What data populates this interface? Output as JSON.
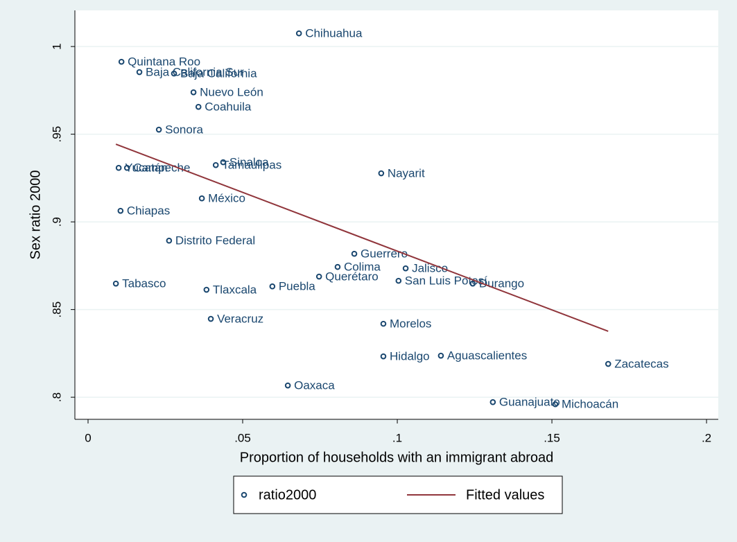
{
  "chart_data": {
    "type": "scatter",
    "x_label": "Proportion of households with an immigrant abroad",
    "y_label": "Sex ratio 2000",
    "xlim": [
      -0.00426,
      0.2038
    ],
    "ylim": [
      0.7874,
      1.0206
    ],
    "xticks": [
      0,
      {
        "value": 0.05,
        "label": ".05"
      },
      {
        "value": 0.1,
        "label": ".1"
      },
      {
        "value": 0.15,
        "label": ".15"
      },
      {
        "value": 0.2,
        "label": ".2"
      }
    ],
    "yticks": [
      {
        "value": 0.8,
        "label": ".8"
      },
      {
        "value": 0.85,
        "label": ".85"
      },
      {
        "value": 0.9,
        "label": ".9"
      },
      {
        "value": 0.95,
        "label": ".95"
      },
      1
    ],
    "grid": true,
    "series": [
      {
        "name": "ratio2000",
        "color": "#1a476f",
        "type": "scatter",
        "labels": [
          "Chihuahua",
          "Quintana Roo",
          "Baja California Sur",
          "Baja California",
          "Nuevo León",
          "Coahuila",
          "Sonora",
          "Yucatán",
          "Campeche",
          "Sinaloa",
          "Tamaulipas",
          "Nayarit",
          "México",
          "Chiapas",
          "Distrito Federal",
          "Guerrero",
          "Colima",
          "Jalisco",
          "Querétaro",
          "San Luis Potosí",
          "Durango",
          "Tabasco",
          "Tlaxcala",
          "Puebla",
          "Veracruz",
          "Morelos",
          "Hidalgo",
          "Aguascalientes",
          "Zacatecas",
          "Oaxaca",
          "Guanajuato",
          "Michoacán"
        ],
        "x": [
          0.0682,
          0.0108,
          0.0166,
          0.0278,
          0.0341,
          0.0357,
          0.0229,
          0.0099,
          0.0126,
          0.0437,
          0.0413,
          0.0948,
          0.0368,
          0.0105,
          0.0262,
          0.0861,
          0.0807,
          0.1027,
          0.0747,
          0.1004,
          0.1244,
          0.009,
          0.0383,
          0.0596,
          0.0397,
          0.0955,
          0.0955,
          0.1141,
          0.1682,
          0.0646,
          0.1309,
          0.1511
        ],
        "values": [
          1.0075,
          0.9913,
          0.9854,
          0.9846,
          0.9739,
          0.9656,
          0.9526,
          0.9308,
          0.9308,
          0.934,
          0.9324,
          0.9277,
          0.9134,
          0.9063,
          0.8893,
          0.8818,
          0.8743,
          0.8735,
          0.8688,
          0.8664,
          0.8648,
          0.8648,
          0.8613,
          0.8632,
          0.8447,
          0.8419,
          0.8233,
          0.8237,
          0.819,
          0.8067,
          0.7972,
          0.796
        ]
      },
      {
        "name": "Fitted values",
        "color": "#90353b",
        "type": "line",
        "x": [
          0.009,
          0.1682
        ],
        "values": [
          0.9443,
          0.8376
        ]
      }
    ]
  }
}
